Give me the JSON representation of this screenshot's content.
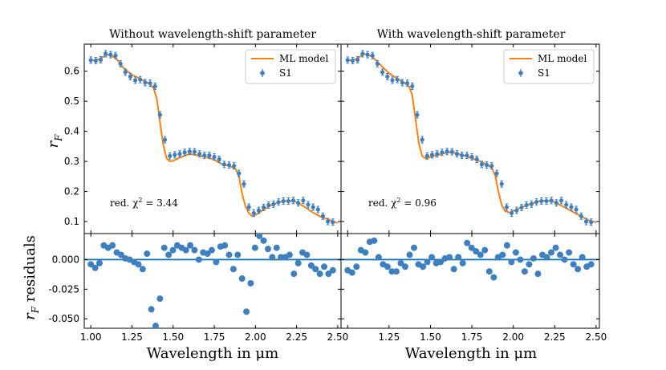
{
  "colors": {
    "model": "#ff7f0e",
    "data": "#3d7fbf",
    "zero_line": "#1f77b4",
    "axes": "#000000"
  },
  "chart_data": {
    "type": "scatter",
    "xlabel": "Wavelength in μm",
    "ylabel_top": "r_F",
    "ylabel_bottom": "r_F residuals",
    "xlim": [
      0.96,
      2.52
    ],
    "xticks": [
      "1.00",
      "1.25",
      "1.50",
      "1.75",
      "2.00",
      "2.25",
      "2.50"
    ],
    "xtick_values": [
      1.0,
      1.25,
      1.5,
      1.75,
      2.0,
      2.25,
      2.5
    ],
    "top_ylim": [
      0.06,
      0.69
    ],
    "top_yticks": [
      "0.1",
      "0.2",
      "0.3",
      "0.4",
      "0.5",
      "0.6"
    ],
    "top_ytick_values": [
      0.1,
      0.2,
      0.3,
      0.4,
      0.5,
      0.6
    ],
    "bottom_ylim": [
      -0.058,
      0.022
    ],
    "bottom_yticks": [
      "0.000",
      "-0.025",
      "-0.050"
    ],
    "bottom_ytick_values": [
      0.0,
      -0.025,
      -0.05
    ],
    "legend": {
      "position": "top-right",
      "model_label": "ML model",
      "data_label": "S1"
    },
    "panels": [
      {
        "title": "Without wavelength-shift parameter",
        "annotation": "red. χ² = 3.44",
        "annotation_prefix": "red. χ",
        "annotation_sup": "2",
        "annotation_value": " = 3.44",
        "data_x": [
          1.0,
          1.03,
          1.06,
          1.09,
          1.12,
          1.15,
          1.18,
          1.21,
          1.24,
          1.27,
          1.3,
          1.33,
          1.36,
          1.39,
          1.42,
          1.45,
          1.48,
          1.51,
          1.54,
          1.57,
          1.6,
          1.63,
          1.66,
          1.69,
          1.72,
          1.75,
          1.78,
          1.81,
          1.84,
          1.87,
          1.9,
          1.93,
          1.96,
          1.99,
          2.02,
          2.05,
          2.08,
          2.11,
          2.14,
          2.17,
          2.2,
          2.23,
          2.26,
          2.29,
          2.32,
          2.35,
          2.38,
          2.41,
          2.44,
          2.47
        ],
        "data_y": [
          0.637,
          0.635,
          0.638,
          0.658,
          0.655,
          0.652,
          0.625,
          0.597,
          0.582,
          0.57,
          0.572,
          0.562,
          0.56,
          0.55,
          0.455,
          0.372,
          0.318,
          0.322,
          0.325,
          0.33,
          0.333,
          0.332,
          0.325,
          0.32,
          0.32,
          0.315,
          0.307,
          0.29,
          0.288,
          0.285,
          0.26,
          0.225,
          0.148,
          0.128,
          0.137,
          0.147,
          0.155,
          0.158,
          0.165,
          0.168,
          0.168,
          0.17,
          0.162,
          0.17,
          0.156,
          0.148,
          0.14,
          0.118,
          0.1,
          0.098
        ],
        "model_x": [
          1.0,
          1.05,
          1.1,
          1.15,
          1.2,
          1.25,
          1.3,
          1.35,
          1.38,
          1.4,
          1.42,
          1.44,
          1.46,
          1.48,
          1.5,
          1.55,
          1.6,
          1.65,
          1.7,
          1.75,
          1.8,
          1.84,
          1.88,
          1.9,
          1.92,
          1.94,
          1.96,
          1.98,
          2.0,
          2.05,
          2.1,
          2.15,
          2.2,
          2.25,
          2.3,
          2.35,
          2.4,
          2.45,
          2.5
        ],
        "model_y": [
          0.635,
          0.64,
          0.655,
          0.645,
          0.61,
          0.588,
          0.575,
          0.56,
          0.545,
          0.51,
          0.43,
          0.355,
          0.31,
          0.3,
          0.302,
          0.315,
          0.325,
          0.32,
          0.315,
          0.305,
          0.29,
          0.285,
          0.275,
          0.25,
          0.19,
          0.15,
          0.128,
          0.118,
          0.122,
          0.14,
          0.155,
          0.165,
          0.17,
          0.165,
          0.148,
          0.13,
          0.115,
          0.105,
          0.095
        ],
        "residuals": [
          -0.004,
          -0.007,
          -0.003,
          0.012,
          0.01,
          0.012,
          0.006,
          0.004,
          0.001,
          0.0,
          -0.002,
          -0.004,
          -0.008,
          0.005,
          -0.042,
          -0.056,
          -0.033,
          0.01,
          0.004,
          0.008,
          0.012,
          0.01,
          0.008,
          0.012,
          0.008,
          0.0,
          0.006,
          0.005,
          0.008,
          -0.002,
          0.011,
          0.012,
          0.004,
          -0.008,
          0.004,
          -0.016,
          -0.044,
          -0.02,
          0.01,
          0.02,
          0.016,
          0.009,
          0.002,
          0.01,
          0.002,
          0.002,
          0.004,
          -0.012,
          -0.003,
          0.006,
          0.004,
          -0.005,
          -0.008,
          -0.012,
          -0.006,
          -0.012,
          -0.009
        ]
      },
      {
        "title": "With wavelength-shift parameter",
        "annotation": "red. χ² = 0.96",
        "annotation_prefix": "red. χ",
        "annotation_sup": "2",
        "annotation_value": " = 0.96",
        "data_x": [
          1.0,
          1.03,
          1.06,
          1.09,
          1.12,
          1.15,
          1.18,
          1.21,
          1.24,
          1.27,
          1.3,
          1.33,
          1.36,
          1.39,
          1.42,
          1.45,
          1.48,
          1.51,
          1.54,
          1.57,
          1.6,
          1.63,
          1.66,
          1.69,
          1.72,
          1.75,
          1.78,
          1.81,
          1.84,
          1.87,
          1.9,
          1.93,
          1.96,
          1.99,
          2.02,
          2.05,
          2.08,
          2.11,
          2.14,
          2.17,
          2.2,
          2.23,
          2.26,
          2.29,
          2.32,
          2.35,
          2.38,
          2.41,
          2.44,
          2.47
        ],
        "data_y": [
          0.637,
          0.635,
          0.638,
          0.658,
          0.655,
          0.652,
          0.625,
          0.597,
          0.582,
          0.57,
          0.572,
          0.562,
          0.56,
          0.55,
          0.455,
          0.372,
          0.318,
          0.322,
          0.325,
          0.33,
          0.333,
          0.332,
          0.325,
          0.32,
          0.32,
          0.315,
          0.307,
          0.29,
          0.288,
          0.285,
          0.26,
          0.225,
          0.148,
          0.128,
          0.137,
          0.147,
          0.155,
          0.158,
          0.165,
          0.168,
          0.168,
          0.17,
          0.162,
          0.17,
          0.156,
          0.148,
          0.14,
          0.118,
          0.1,
          0.098
        ],
        "model_x": [
          1.0,
          1.05,
          1.1,
          1.15,
          1.2,
          1.25,
          1.3,
          1.34,
          1.37,
          1.39,
          1.41,
          1.43,
          1.45,
          1.47,
          1.5,
          1.55,
          1.6,
          1.65,
          1.7,
          1.75,
          1.8,
          1.84,
          1.87,
          1.89,
          1.91,
          1.93,
          1.95,
          1.98,
          2.0,
          2.05,
          2.1,
          2.15,
          2.2,
          2.25,
          2.3,
          2.35,
          2.4,
          2.45,
          2.5
        ],
        "model_y": [
          0.635,
          0.64,
          0.658,
          0.648,
          0.62,
          0.593,
          0.575,
          0.562,
          0.55,
          0.52,
          0.44,
          0.36,
          0.318,
          0.31,
          0.315,
          0.322,
          0.33,
          0.328,
          0.32,
          0.31,
          0.3,
          0.29,
          0.278,
          0.255,
          0.2,
          0.155,
          0.135,
          0.13,
          0.135,
          0.147,
          0.158,
          0.167,
          0.17,
          0.165,
          0.15,
          0.135,
          0.12,
          0.105,
          0.097
        ],
        "residuals": [
          -0.009,
          -0.011,
          -0.006,
          0.008,
          0.006,
          0.015,
          0.016,
          0.002,
          -0.004,
          -0.006,
          -0.01,
          -0.01,
          -0.003,
          -0.006,
          0.004,
          0.01,
          -0.004,
          -0.006,
          -0.002,
          0.002,
          -0.003,
          -0.002,
          0.001,
          0.002,
          -0.008,
          0.002,
          -0.003,
          0.014,
          0.01,
          0.007,
          0.004,
          0.008,
          -0.01,
          -0.015,
          0.002,
          0.004,
          0.012,
          -0.002,
          0.006,
          0.0,
          -0.01,
          -0.004,
          0.001,
          -0.012,
          0.004,
          0.002,
          0.006,
          0.01,
          0.004,
          0.0,
          0.006,
          -0.004,
          -0.008,
          0.002,
          -0.006,
          -0.004
        ]
      }
    ]
  }
}
